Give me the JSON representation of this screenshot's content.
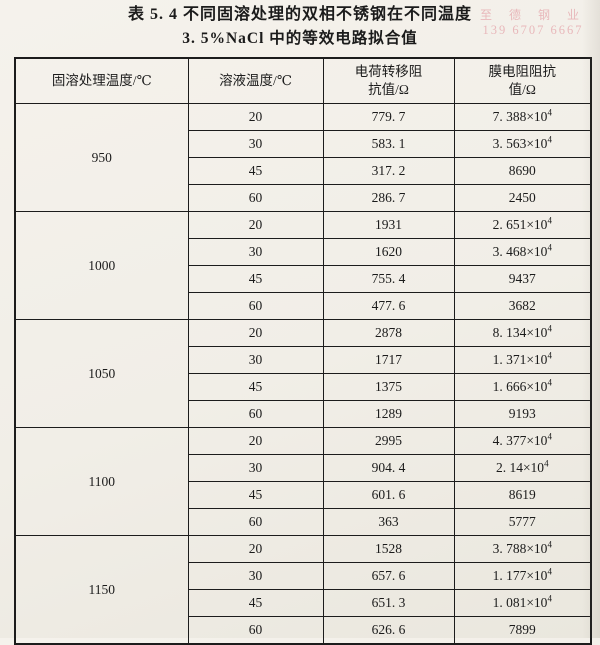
{
  "title": {
    "line1": "表 5. 4  不同固溶处理的双相不锈钢在不同温度",
    "line2": "3. 5%NaCl 中的等效电路拟合值"
  },
  "watermark": {
    "company": "至 德 钢 业",
    "phone": "139 6707 6667",
    "color": "#e39aa2"
  },
  "table": {
    "headers": {
      "solution_treatment_temp": "固溶处理温度/℃",
      "solution_temp": "溶液温度/℃",
      "charge_transfer_line1": "电荷转移阻",
      "charge_transfer_line2": "抗值/Ω",
      "film_resistance_line1": "膜电阻阻抗",
      "film_resistance_line2": "值/Ω"
    },
    "groups": [
      {
        "temp": "950",
        "rows": [
          {
            "sol": "20",
            "rct": "779. 7",
            "rf": "7. 388×10",
            "rf_sup": "4"
          },
          {
            "sol": "30",
            "rct": "583. 1",
            "rf": "3. 563×10",
            "rf_sup": "4"
          },
          {
            "sol": "45",
            "rct": "317. 2",
            "rf": "8690",
            "rf_sup": ""
          },
          {
            "sol": "60",
            "rct": "286. 7",
            "rf": "2450",
            "rf_sup": ""
          }
        ]
      },
      {
        "temp": "1000",
        "rows": [
          {
            "sol": "20",
            "rct": "1931",
            "rf": "2. 651×10",
            "rf_sup": "4"
          },
          {
            "sol": "30",
            "rct": "1620",
            "rf": "3. 468×10",
            "rf_sup": "4"
          },
          {
            "sol": "45",
            "rct": "755. 4",
            "rf": "9437",
            "rf_sup": ""
          },
          {
            "sol": "60",
            "rct": "477. 6",
            "rf": "3682",
            "rf_sup": ""
          }
        ]
      },
      {
        "temp": "1050",
        "rows": [
          {
            "sol": "20",
            "rct": "2878",
            "rf": "8. 134×10",
            "rf_sup": "4"
          },
          {
            "sol": "30",
            "rct": "1717",
            "rf": "1. 371×10",
            "rf_sup": "4"
          },
          {
            "sol": "45",
            "rct": "1375",
            "rf": "1. 666×10",
            "rf_sup": "4"
          },
          {
            "sol": "60",
            "rct": "1289",
            "rf": "9193",
            "rf_sup": ""
          }
        ]
      },
      {
        "temp": "1100",
        "rows": [
          {
            "sol": "20",
            "rct": "2995",
            "rf": "4. 377×10",
            "rf_sup": "4"
          },
          {
            "sol": "30",
            "rct": "904. 4",
            "rf": "2. 14×10",
            "rf_sup": "4"
          },
          {
            "sol": "45",
            "rct": "601. 6",
            "rf": "8619",
            "rf_sup": ""
          },
          {
            "sol": "60",
            "rct": "363",
            "rf": "5777",
            "rf_sup": ""
          }
        ]
      },
      {
        "temp": "1150",
        "rows": [
          {
            "sol": "20",
            "rct": "1528",
            "rf": "3. 788×10",
            "rf_sup": "4"
          },
          {
            "sol": "30",
            "rct": "657. 6",
            "rf": "1. 177×10",
            "rf_sup": "4"
          },
          {
            "sol": "45",
            "rct": "651. 3",
            "rf": "1. 081×10",
            "rf_sup": "4"
          },
          {
            "sol": "60",
            "rct": "626. 6",
            "rf": "7899",
            "rf_sup": ""
          }
        ]
      }
    ]
  }
}
